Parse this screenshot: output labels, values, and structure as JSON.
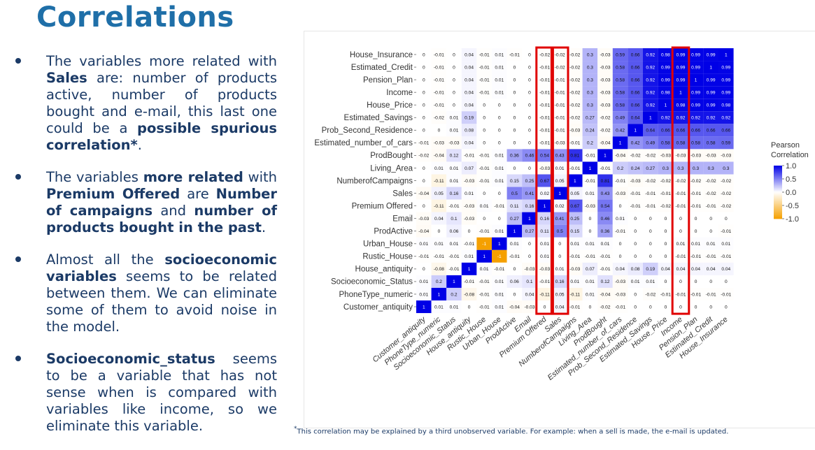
{
  "slide": {
    "title": "Correlations",
    "bullets": [
      [
        {
          "t": "The variables more related with ",
          "b": false
        },
        {
          "t": "Sales",
          "b": true
        },
        {
          "t": " are: number of products active,    number of products bought and e-mail, this last one could be a ",
          "b": false
        },
        {
          "t": "possible spurious correlation*",
          "b": true
        },
        {
          "t": ".",
          "b": false
        }
      ],
      [
        {
          "t": "The variables ",
          "b": false
        },
        {
          "t": "more related",
          "b": true
        },
        {
          "t": " with ",
          "b": false
        },
        {
          "t": "Premium Offered",
          "b": true
        },
        {
          "t": " are ",
          "b": false
        },
        {
          "t": "Number of campaigns",
          "b": true
        },
        {
          "t": " and ",
          "b": false
        },
        {
          "t": "number of products bought in the past",
          "b": true
        },
        {
          "t": ".",
          "b": false
        }
      ],
      [
        {
          "t": "Almost all the ",
          "b": false
        },
        {
          "t": "socioeconomic variables",
          "b": true
        },
        {
          "t": " seems to be related between them. We can eliminate some of them to avoid noise in the model.",
          "b": false
        }
      ],
      [
        {
          "t": "Socioeconomic_status",
          "b": true
        },
        {
          "t": " seems to be a variable that has not sense when is compared with variables like income, so we eliminate this variable.",
          "b": false
        }
      ]
    ],
    "footnote_mark": "*",
    "footnote": "This correlation may be explained by a third unobserved variable. For example: when a sell is made, the e-mail is updated."
  },
  "chart_data": {
    "type": "heatmap",
    "x_labels": [
      "Customer_antiquity",
      "PhoneType_numeric",
      "Socioeconomic_Status",
      "House_antiquity",
      "Rustic_House",
      "Urban_House",
      "ProdActive",
      "Email",
      "Premium Offered",
      "Sales",
      "NumberofCampaigns",
      "Living_Area",
      "ProdBought",
      "Estimated_number_of_cars",
      "Prob_Second_Residence",
      "Estimated_Savings",
      "House_Price",
      "Income",
      "Pension_Plan",
      "Estimated_Credit",
      "House_Insurance"
    ],
    "y_labels": [
      "House_Insurance",
      "Estimated_Credit",
      "Pension_Plan",
      "Income",
      "House_Price",
      "Estimated_Savings",
      "Prob_Second_Residence",
      "Estimated_number_of_cars",
      "ProdBought",
      "Living_Area",
      "NumberofCampaigns",
      "Sales",
      "Premium Offered",
      "Email",
      "ProdActive",
      "Urban_House",
      "Rustic_House",
      "House_antiquity",
      "Socioeconomic_Status",
      "PhoneType_numeric",
      "Customer_antiquity"
    ],
    "cells": [
      [
        "0",
        "-0.01",
        "0",
        "0.04",
        "-0.01",
        "0.01",
        "-0.01",
        "0",
        "-0.02",
        "-0.02",
        "-0.02",
        "0.3",
        "-0.03",
        "0.59",
        "0.66",
        "0.92",
        "0.98",
        "0.99",
        "0.99",
        "0.99",
        "1"
      ],
      [
        "0",
        "-0.01",
        "0",
        "0.04",
        "-0.01",
        "0.01",
        "0",
        "0",
        "-0.01",
        "-0.02",
        "-0.02",
        "0.3",
        "-0.03",
        "0.58",
        "0.66",
        "0.92",
        "0.99",
        "0.99",
        "0.99",
        "1",
        "0.99"
      ],
      [
        "0",
        "-0.01",
        "0",
        "0.04",
        "-0.01",
        "0.01",
        "0",
        "0",
        "-0.01",
        "-0.01",
        "-0.02",
        "0.3",
        "-0.03",
        "0.58",
        "0.66",
        "0.92",
        "0.99",
        "0.99",
        "1",
        "0.99",
        "0.99"
      ],
      [
        "0",
        "-0.01",
        "0",
        "0.04",
        "-0.01",
        "0.01",
        "0",
        "0",
        "-0.01",
        "-0.01",
        "-0.02",
        "0.3",
        "-0.03",
        "0.58",
        "0.66",
        "0.92",
        "0.98",
        "1",
        "0.99",
        "0.99",
        "0.99"
      ],
      [
        "0",
        "-0.01",
        "0",
        "0.04",
        "0",
        "0",
        "0",
        "0",
        "-0.01",
        "-0.01",
        "-0.02",
        "0.3",
        "-0.03",
        "0.58",
        "0.66",
        "0.92",
        "1",
        "0.98",
        "0.99",
        "0.99",
        "0.98"
      ],
      [
        "0",
        "-0.02",
        "0.01",
        "0.19",
        "0",
        "0",
        "0",
        "0",
        "-0.01",
        "-0.01",
        "-0.02",
        "0.27",
        "-0.02",
        "0.49",
        "0.64",
        "1",
        "0.92",
        "0.92",
        "0.92",
        "0.92",
        "0.92"
      ],
      [
        "0",
        "0",
        "0.01",
        "0.08",
        "0",
        "0",
        "0",
        "0",
        "-0.01",
        "-0.01",
        "-0.03",
        "0.24",
        "-0.02",
        "0.42",
        "1",
        "0.64",
        "0.66",
        "0.66",
        "0.66",
        "0.66",
        "0.66"
      ],
      [
        "-0.01",
        "-0.03",
        "-0.03",
        "0.04",
        "0",
        "0",
        "0",
        "0",
        "-0.01",
        "-0.03",
        "-0.01",
        "0.2",
        "-0.04",
        "1",
        "0.42",
        "0.49",
        "0.58",
        "0.58",
        "0.58",
        "0.58",
        "0.59"
      ],
      [
        "-0.02",
        "-0.04",
        "0.12",
        "-0.01",
        "-0.01",
        "0.01",
        "0.36",
        "0.46",
        "0.54",
        "0.43",
        "0.81",
        "-0.01",
        "1",
        "-0.04",
        "-0.02",
        "-0.02",
        "-0.03",
        "-0.03",
        "-0.03",
        "-0.03",
        "-0.03"
      ],
      [
        "0",
        "0.01",
        "0.01",
        "0.07",
        "-0.01",
        "0.01",
        "0",
        "0",
        "-0.03",
        "0.01",
        "-0.01",
        "1",
        "-0.01",
        "0.2",
        "0.24",
        "0.27",
        "0.3",
        "0.3",
        "0.3",
        "0.3",
        "0.3"
      ],
      [
        "0",
        "-0.11",
        "0.01",
        "-0.03",
        "-0.01",
        "0.01",
        "0.15",
        "0.25",
        "0.67",
        "0.05",
        "1",
        "-0.01",
        "0.81",
        "-0.01",
        "-0.03",
        "-0.02",
        "-0.02",
        "-0.02",
        "-0.02",
        "-0.02",
        "-0.02"
      ],
      [
        "-0.04",
        "0.05",
        "0.16",
        "0.01",
        "0",
        "0",
        "0.5",
        "0.41",
        "0.02",
        "1",
        "0.05",
        "0.01",
        "0.43",
        "-0.03",
        "-0.01",
        "-0.01",
        "-0.01",
        "-0.01",
        "-0.01",
        "-0.02",
        "-0.02"
      ],
      [
        "0",
        "-0.11",
        "-0.01",
        "-0.03",
        "0.01",
        "-0.01",
        "0.11",
        "0.16",
        "1",
        "0.02",
        "0.67",
        "-0.03",
        "0.54",
        "0",
        "-0.01",
        "-0.01",
        "-0.02",
        "-0.01",
        "-0.01",
        "-0.01",
        "-0.02"
      ],
      [
        "-0.03",
        "0.04",
        "0.1",
        "-0.03",
        "0",
        "0",
        "0.27",
        "1",
        "0.16",
        "0.41",
        "0.25",
        "0",
        "0.46",
        "0.01",
        "0",
        "0",
        "0",
        "0",
        "0",
        "0",
        "0"
      ],
      [
        "-0.04",
        "0",
        "0.06",
        "0",
        "-0.01",
        "0.01",
        "1",
        "0.27",
        "0.11",
        "0.5",
        "0.15",
        "0",
        "0.36",
        "-0.01",
        "0",
        "0",
        "0",
        "0",
        "0",
        "0",
        "-0.01"
      ],
      [
        "0.01",
        "0.01",
        "0.01",
        "-0.01",
        "-1",
        "1",
        "0.01",
        "0",
        "0.01",
        "0",
        "0.01",
        "0.01",
        "0.01",
        "0",
        "0",
        "0",
        "0",
        "0.01",
        "0.01",
        "0.01",
        "0.01"
      ],
      [
        "-0.01",
        "-0.01",
        "-0.01",
        "0.01",
        "1",
        "-1",
        "-0.01",
        "0",
        "0.01",
        "0",
        "-0.01",
        "-0.01",
        "-0.01",
        "0",
        "0",
        "0",
        "0",
        "-0.01",
        "-0.01",
        "-0.01",
        "-0.01"
      ],
      [
        "0",
        "-0.08",
        "-0.01",
        "1",
        "0.01",
        "-0.01",
        "0",
        "-0.03",
        "-0.03",
        "0.01",
        "-0.03",
        "0.07",
        "-0.01",
        "0.04",
        "0.08",
        "0.19",
        "0.04",
        "0.04",
        "0.04",
        "0.04",
        "0.04"
      ],
      [
        "0.01",
        "0.2",
        "1",
        "-0.01",
        "-0.01",
        "0.01",
        "0.06",
        "0.1",
        "-0.01",
        "0.16",
        "0.01",
        "0.01",
        "0.12",
        "-0.03",
        "0.01",
        "0.01",
        "0",
        "0",
        "0",
        "0",
        "0"
      ],
      [
        "0.01",
        "1",
        "0.2",
        "-0.08",
        "-0.01",
        "0.01",
        "0",
        "0.04",
        "-0.11",
        "0.05",
        "-0.11",
        "0.01",
        "-0.04",
        "-0.03",
        "0",
        "-0.02",
        "-0.01",
        "-0.01",
        "-0.01",
        "-0.01",
        "-0.01"
      ],
      [
        "1",
        "0.01",
        "0.01",
        "0",
        "-0.01",
        "0.01",
        "-0.04",
        "-0.03",
        "0",
        "0.04",
        "-0.01",
        "0",
        "-0.02",
        "-0.01",
        "0",
        "0",
        "0",
        "0",
        "0",
        "0",
        "0"
      ]
    ],
    "highlighted_columns": [
      "Premium Offered",
      "Sales",
      "Income"
    ],
    "legend": {
      "title": "Pearson Correlation",
      "ticks": [
        "1.0",
        "0.5",
        "0.0",
        "-0.5",
        "-1.0"
      ],
      "range": [
        -1,
        1
      ],
      "position": "right"
    },
    "colors": {
      "positive": "#0000e6",
      "zero": "#ffffff",
      "negative": "#f5a000",
      "highlight": "#e00000"
    }
  }
}
